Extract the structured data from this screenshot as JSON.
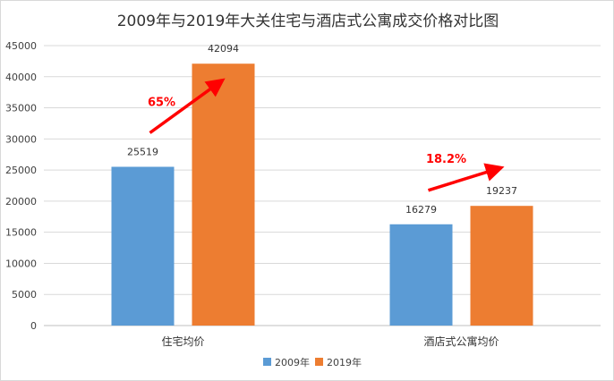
{
  "chart_data": {
    "type": "bar",
    "title": "2009年与2019年大关住宅与酒店式公寓成交价格对比图",
    "categories": [
      "住宅均价",
      "酒店式公寓均价"
    ],
    "series": [
      {
        "name": "2009年",
        "color": "#5B9BD5",
        "values": [
          25519,
          16279
        ]
      },
      {
        "name": "2019年",
        "color": "#ED7D31",
        "values": [
          42094,
          19237
        ]
      }
    ],
    "ylim": [
      0,
      45000
    ],
    "yticks": [
      0,
      5000,
      10000,
      15000,
      20000,
      25000,
      30000,
      35000,
      40000,
      45000
    ],
    "grid": true,
    "legend": "bottom",
    "annotations": [
      {
        "category": 0,
        "text": "65%",
        "color": "#FF0000"
      },
      {
        "category": 1,
        "text": "18.2%",
        "color": "#FF0000"
      }
    ]
  }
}
